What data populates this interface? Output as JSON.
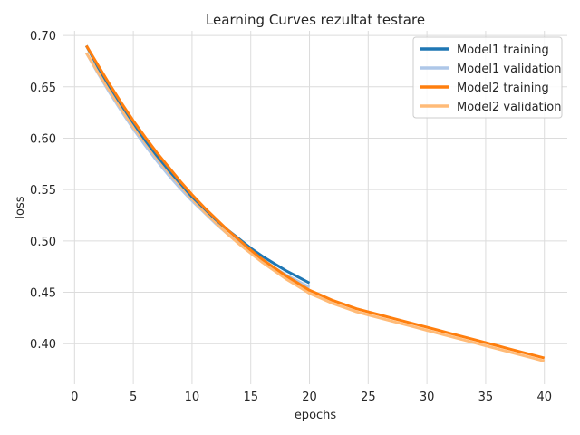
{
  "chart_data": {
    "type": "line",
    "title": "Learning Curves rezultat testare",
    "xlabel": "epochs",
    "ylabel": "loss",
    "xlim": [
      -0.95,
      41.95
    ],
    "ylim": [
      0.3605,
      0.7045
    ],
    "x_ticks": [
      0,
      5,
      10,
      15,
      20,
      25,
      30,
      35,
      40
    ],
    "y_ticks": [
      0.4,
      0.45,
      0.5,
      0.55,
      0.6,
      0.65,
      0.7
    ],
    "grid": true,
    "legend_position": "top-right",
    "series": [
      {
        "name": "Model1 training",
        "color": "#1f77b4",
        "x": [
          1,
          2,
          3,
          4,
          5,
          6,
          7,
          8,
          9,
          10,
          11,
          12,
          13,
          14,
          15,
          16,
          17,
          18,
          19,
          20
        ],
        "y": [
          0.69,
          0.669,
          0.65,
          0.632,
          0.615,
          0.598,
          0.583,
          0.569,
          0.556,
          0.543,
          0.532,
          0.521,
          0.511,
          0.502,
          0.493,
          0.485,
          0.478,
          0.471,
          0.465,
          0.459
        ]
      },
      {
        "name": "Model1 validation",
        "color": "#aec7e8",
        "x": [
          1,
          2,
          3,
          4,
          5,
          6,
          7,
          8,
          9,
          10,
          11,
          12,
          13,
          14,
          15,
          16,
          17,
          18,
          19,
          20
        ],
        "y": [
          0.683,
          0.663,
          0.644,
          0.626,
          0.609,
          0.593,
          0.578,
          0.564,
          0.551,
          0.539,
          0.528,
          0.517,
          0.507,
          0.498,
          0.489,
          0.481,
          0.474,
          0.467,
          0.461,
          0.455
        ]
      },
      {
        "name": "Model2 training",
        "color": "#ff7f0e",
        "x": [
          1,
          2,
          3,
          4,
          5,
          6,
          7,
          8,
          9,
          10,
          11,
          12,
          13,
          14,
          15,
          16,
          17,
          18,
          19,
          20,
          21,
          22,
          23,
          24,
          25,
          26,
          27,
          28,
          29,
          30,
          31,
          32,
          33,
          34,
          35,
          36,
          37,
          38,
          39,
          40
        ],
        "y": [
          0.69,
          0.671,
          0.652,
          0.634,
          0.617,
          0.601,
          0.586,
          0.572,
          0.558,
          0.545,
          0.533,
          0.522,
          0.511,
          0.501,
          0.491,
          0.482,
          0.474,
          0.466,
          0.459,
          0.452,
          0.447,
          0.442,
          0.438,
          0.434,
          0.431,
          0.428,
          0.425,
          0.422,
          0.419,
          0.416,
          0.413,
          0.41,
          0.407,
          0.404,
          0.401,
          0.398,
          0.395,
          0.392,
          0.389,
          0.386
        ]
      },
      {
        "name": "Model2 validation",
        "color": "#ffbb78",
        "x": [
          1,
          2,
          3,
          4,
          5,
          6,
          7,
          8,
          9,
          10,
          11,
          12,
          13,
          14,
          15,
          16,
          17,
          18,
          19,
          20,
          21,
          22,
          23,
          24,
          25,
          26,
          27,
          28,
          29,
          30,
          31,
          32,
          33,
          34,
          35,
          36,
          37,
          38,
          39,
          40
        ],
        "y": [
          0.683,
          0.664,
          0.646,
          0.628,
          0.611,
          0.596,
          0.581,
          0.567,
          0.554,
          0.541,
          0.529,
          0.518,
          0.507,
          0.497,
          0.488,
          0.479,
          0.471,
          0.463,
          0.456,
          0.449,
          0.444,
          0.439,
          0.435,
          0.431,
          0.428,
          0.425,
          0.422,
          0.419,
          0.416,
          0.413,
          0.41,
          0.407,
          0.404,
          0.401,
          0.398,
          0.395,
          0.392,
          0.389,
          0.386,
          0.383
        ]
      }
    ]
  }
}
